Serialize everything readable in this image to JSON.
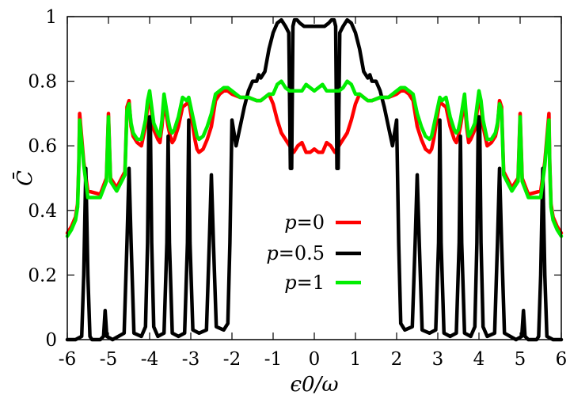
{
  "chart_data": {
    "type": "line",
    "title": "",
    "xlabel": "ϵ0/ω",
    "ylabel": "C̄̄",
    "xlim": [
      -6,
      6
    ],
    "ylim": [
      0,
      1
    ],
    "xticks": [
      -6,
      -5,
      -4,
      -3,
      -2,
      -1,
      0,
      1,
      2,
      3,
      4,
      5,
      6
    ],
    "xtick_labels": [
      "-6",
      "-5",
      "-4",
      "-3",
      "-2",
      "-1",
      "0",
      "1",
      "2",
      "3",
      "4",
      "5",
      "6"
    ],
    "yticks": [
      0,
      0.2,
      0.4,
      0.6,
      0.8,
      1
    ],
    "ytick_labels": [
      "0",
      "0.2",
      "0.4",
      "0.6",
      "0.8",
      "1"
    ],
    "legend_position": "center",
    "series": [
      {
        "name": "p=0",
        "legend_prefix": "p",
        "legend_suffix": "=0",
        "color": "#ff0000",
        "x": [
          -6.0,
          -5.9,
          -5.8,
          -5.75,
          -5.72,
          -5.7,
          -5.6,
          -5.5,
          -5.2,
          -5.05,
          -5.0,
          -4.95,
          -4.8,
          -4.6,
          -4.55,
          -4.5,
          -4.45,
          -4.4,
          -4.3,
          -4.2,
          -4.1,
          -4.05,
          -4.0,
          -3.95,
          -3.9,
          -3.8,
          -3.75,
          -3.7,
          -3.65,
          -3.6,
          -3.55,
          -3.5,
          -3.45,
          -3.4,
          -3.3,
          -3.2,
          -3.1,
          -3.05,
          -3.0,
          -2.95,
          -2.9,
          -2.85,
          -2.8,
          -2.7,
          -2.6,
          -2.5,
          -2.45,
          -2.4,
          -2.3,
          -2.2,
          -2.1,
          -2.0,
          -1.8,
          -1.6,
          -1.4,
          -1.3,
          -1.2,
          -1.1,
          -1.0,
          -0.9,
          -0.8,
          -0.7,
          -0.6,
          -0.5,
          -0.4,
          -0.3,
          -0.2,
          -0.1,
          0.0,
          0.1,
          0.2,
          0.3,
          0.4,
          0.5,
          0.6,
          0.7,
          0.8,
          0.9,
          1.0,
          1.1,
          1.2,
          1.3,
          1.4,
          1.6,
          1.8,
          2.0,
          2.1,
          2.2,
          2.3,
          2.4,
          2.45,
          2.5,
          2.6,
          2.7,
          2.8,
          2.85,
          2.9,
          2.95,
          3.0,
          3.05,
          3.1,
          3.2,
          3.3,
          3.4,
          3.45,
          3.5,
          3.55,
          3.6,
          3.65,
          3.7,
          3.75,
          3.8,
          3.9,
          3.95,
          4.0,
          4.05,
          4.1,
          4.2,
          4.3,
          4.4,
          4.45,
          4.5,
          4.55,
          4.6,
          4.8,
          4.95,
          5.0,
          5.05,
          5.2,
          5.5,
          5.6,
          5.7,
          5.72,
          5.75,
          5.8,
          5.9,
          6.0
        ],
        "y": [
          0.33,
          0.35,
          0.38,
          0.42,
          0.55,
          0.7,
          0.55,
          0.46,
          0.45,
          0.5,
          0.7,
          0.5,
          0.47,
          0.52,
          0.72,
          0.74,
          0.66,
          0.63,
          0.61,
          0.6,
          0.66,
          0.72,
          0.75,
          0.7,
          0.65,
          0.62,
          0.61,
          0.66,
          0.74,
          0.7,
          0.66,
          0.63,
          0.61,
          0.62,
          0.66,
          0.72,
          0.73,
          0.74,
          0.7,
          0.66,
          0.62,
          0.59,
          0.58,
          0.59,
          0.62,
          0.66,
          0.7,
          0.74,
          0.76,
          0.77,
          0.77,
          0.76,
          0.75,
          0.75,
          0.74,
          0.74,
          0.75,
          0.76,
          0.73,
          0.68,
          0.64,
          0.62,
          0.6,
          0.58,
          0.6,
          0.61,
          0.58,
          0.58,
          0.59,
          0.58,
          0.58,
          0.61,
          0.6,
          0.58,
          0.6,
          0.62,
          0.64,
          0.68,
          0.73,
          0.76,
          0.75,
          0.74,
          0.74,
          0.75,
          0.75,
          0.76,
          0.77,
          0.77,
          0.76,
          0.74,
          0.7,
          0.66,
          0.62,
          0.59,
          0.58,
          0.59,
          0.62,
          0.66,
          0.7,
          0.74,
          0.73,
          0.72,
          0.66,
          0.62,
          0.61,
          0.63,
          0.66,
          0.7,
          0.74,
          0.66,
          0.61,
          0.62,
          0.65,
          0.7,
          0.75,
          0.72,
          0.66,
          0.6,
          0.61,
          0.63,
          0.66,
          0.74,
          0.72,
          0.52,
          0.47,
          0.5,
          0.7,
          0.5,
          0.45,
          0.46,
          0.55,
          0.7,
          0.55,
          0.42,
          0.38,
          0.35,
          0.33
        ]
      },
      {
        "name": "p=0.5",
        "legend_prefix": "p",
        "legend_suffix": "=0.5",
        "color": "#000000",
        "x": [
          -6.0,
          -5.8,
          -5.65,
          -5.6,
          -5.55,
          -5.5,
          -5.45,
          -5.4,
          -5.2,
          -5.12,
          -5.08,
          -5.04,
          -4.9,
          -4.62,
          -4.55,
          -4.5,
          -4.45,
          -4.38,
          -4.2,
          -4.1,
          -4.05,
          -4.02,
          -4.0,
          -3.98,
          -3.95,
          -3.9,
          -3.8,
          -3.65,
          -3.58,
          -3.55,
          -3.52,
          -3.45,
          -3.3,
          -3.15,
          -3.08,
          -3.05,
          -3.02,
          -2.95,
          -2.8,
          -2.62,
          -2.55,
          -2.5,
          -2.45,
          -2.38,
          -2.2,
          -2.1,
          -2.05,
          -2.0,
          -1.9,
          -1.8,
          -1.7,
          -1.6,
          -1.5,
          -1.4,
          -1.35,
          -1.3,
          -1.2,
          -1.1,
          -1.0,
          -0.9,
          -0.8,
          -0.7,
          -0.62,
          -0.58,
          -0.55,
          -0.52,
          -0.48,
          -0.42,
          -0.35,
          -0.25,
          -0.1,
          0.0,
          0.1,
          0.25,
          0.35,
          0.42,
          0.48,
          0.52,
          0.55,
          0.58,
          0.62,
          0.7,
          0.8,
          0.9,
          1.0,
          1.1,
          1.2,
          1.3,
          1.35,
          1.4,
          1.5,
          1.6,
          1.7,
          1.8,
          1.9,
          2.0,
          2.05,
          2.1,
          2.2,
          2.38,
          2.45,
          2.5,
          2.55,
          2.62,
          2.8,
          2.95,
          3.02,
          3.05,
          3.08,
          3.15,
          3.3,
          3.45,
          3.52,
          3.55,
          3.58,
          3.65,
          3.8,
          3.9,
          3.95,
          3.98,
          4.0,
          4.02,
          4.05,
          4.1,
          4.2,
          4.38,
          4.45,
          4.5,
          4.55,
          4.62,
          4.9,
          5.04,
          5.08,
          5.12,
          5.2,
          5.4,
          5.45,
          5.5,
          5.55,
          5.6,
          5.65,
          5.8,
          6.0
        ],
        "y": [
          0.0,
          0.0,
          0.01,
          0.2,
          0.53,
          0.2,
          0.01,
          0.0,
          0.0,
          0.01,
          0.09,
          0.01,
          0.0,
          0.02,
          0.3,
          0.53,
          0.3,
          0.02,
          0.01,
          0.04,
          0.3,
          0.66,
          0.69,
          0.66,
          0.3,
          0.04,
          0.01,
          0.02,
          0.3,
          0.63,
          0.3,
          0.02,
          0.01,
          0.02,
          0.3,
          0.68,
          0.3,
          0.03,
          0.02,
          0.03,
          0.3,
          0.51,
          0.3,
          0.04,
          0.03,
          0.05,
          0.3,
          0.68,
          0.6,
          0.66,
          0.72,
          0.77,
          0.8,
          0.8,
          0.82,
          0.81,
          0.83,
          0.9,
          0.95,
          0.98,
          0.99,
          0.97,
          0.95,
          0.53,
          0.53,
          0.97,
          0.99,
          0.99,
          0.98,
          0.97,
          0.97,
          0.97,
          0.97,
          0.97,
          0.98,
          0.99,
          0.99,
          0.97,
          0.53,
          0.53,
          0.95,
          0.97,
          0.99,
          0.98,
          0.95,
          0.9,
          0.83,
          0.81,
          0.82,
          0.8,
          0.8,
          0.77,
          0.72,
          0.66,
          0.6,
          0.68,
          0.3,
          0.05,
          0.03,
          0.04,
          0.3,
          0.51,
          0.3,
          0.03,
          0.02,
          0.03,
          0.3,
          0.68,
          0.3,
          0.02,
          0.01,
          0.02,
          0.3,
          0.63,
          0.3,
          0.02,
          0.01,
          0.04,
          0.3,
          0.66,
          0.69,
          0.66,
          0.3,
          0.04,
          0.01,
          0.02,
          0.3,
          0.53,
          0.3,
          0.02,
          0.0,
          0.01,
          0.09,
          0.01,
          0.0,
          0.0,
          0.01,
          0.2,
          0.53,
          0.2,
          0.01,
          0.0,
          0.0
        ]
      },
      {
        "name": "p=1",
        "legend_prefix": "p",
        "legend_suffix": "=1",
        "color": "#00ee00",
        "x": [
          -6.0,
          -5.9,
          -5.8,
          -5.75,
          -5.72,
          -5.7,
          -5.6,
          -5.5,
          -5.2,
          -5.05,
          -5.0,
          -4.95,
          -4.8,
          -4.6,
          -4.55,
          -4.5,
          -4.45,
          -4.4,
          -4.3,
          -4.2,
          -4.1,
          -4.05,
          -4.0,
          -3.95,
          -3.9,
          -3.8,
          -3.75,
          -3.7,
          -3.65,
          -3.6,
          -3.55,
          -3.5,
          -3.45,
          -3.4,
          -3.3,
          -3.2,
          -3.1,
          -3.05,
          -3.0,
          -2.95,
          -2.9,
          -2.85,
          -2.8,
          -2.7,
          -2.6,
          -2.5,
          -2.45,
          -2.4,
          -2.3,
          -2.2,
          -2.1,
          -2.0,
          -1.8,
          -1.6,
          -1.4,
          -1.3,
          -1.2,
          -1.1,
          -1.0,
          -0.9,
          -0.8,
          -0.7,
          -0.6,
          -0.5,
          -0.4,
          -0.3,
          -0.2,
          -0.1,
          0.0,
          0.1,
          0.2,
          0.3,
          0.4,
          0.5,
          0.6,
          0.7,
          0.8,
          0.9,
          1.0,
          1.1,
          1.2,
          1.3,
          1.4,
          1.6,
          1.8,
          2.0,
          2.1,
          2.2,
          2.3,
          2.4,
          2.45,
          2.5,
          2.6,
          2.7,
          2.8,
          2.85,
          2.9,
          2.95,
          3.0,
          3.05,
          3.1,
          3.2,
          3.3,
          3.4,
          3.45,
          3.5,
          3.55,
          3.6,
          3.65,
          3.7,
          3.75,
          3.8,
          3.9,
          3.95,
          4.0,
          4.05,
          4.1,
          4.2,
          4.3,
          4.4,
          4.45,
          4.5,
          4.55,
          4.6,
          4.8,
          4.95,
          5.0,
          5.05,
          5.2,
          5.5,
          5.6,
          5.7,
          5.72,
          5.75,
          5.8,
          5.9,
          6.0
        ],
        "y": [
          0.32,
          0.34,
          0.37,
          0.41,
          0.54,
          0.68,
          0.54,
          0.44,
          0.44,
          0.49,
          0.69,
          0.49,
          0.46,
          0.51,
          0.71,
          0.73,
          0.67,
          0.64,
          0.62,
          0.62,
          0.68,
          0.74,
          0.77,
          0.72,
          0.67,
          0.64,
          0.63,
          0.68,
          0.76,
          0.72,
          0.68,
          0.65,
          0.64,
          0.65,
          0.69,
          0.75,
          0.74,
          0.75,
          0.72,
          0.69,
          0.66,
          0.63,
          0.62,
          0.63,
          0.66,
          0.7,
          0.73,
          0.76,
          0.77,
          0.78,
          0.78,
          0.77,
          0.75,
          0.75,
          0.74,
          0.74,
          0.75,
          0.76,
          0.76,
          0.79,
          0.8,
          0.78,
          0.77,
          0.77,
          0.77,
          0.77,
          0.79,
          0.78,
          0.77,
          0.78,
          0.79,
          0.77,
          0.77,
          0.77,
          0.77,
          0.78,
          0.8,
          0.79,
          0.76,
          0.76,
          0.75,
          0.74,
          0.74,
          0.75,
          0.75,
          0.77,
          0.78,
          0.78,
          0.77,
          0.76,
          0.73,
          0.7,
          0.66,
          0.63,
          0.62,
          0.63,
          0.66,
          0.69,
          0.72,
          0.75,
          0.74,
          0.75,
          0.69,
          0.65,
          0.64,
          0.65,
          0.68,
          0.72,
          0.76,
          0.68,
          0.63,
          0.64,
          0.67,
          0.72,
          0.77,
          0.74,
          0.68,
          0.62,
          0.62,
          0.64,
          0.67,
          0.73,
          0.71,
          0.51,
          0.46,
          0.49,
          0.69,
          0.49,
          0.44,
          0.44,
          0.54,
          0.68,
          0.54,
          0.41,
          0.37,
          0.34,
          0.32
        ]
      }
    ]
  }
}
